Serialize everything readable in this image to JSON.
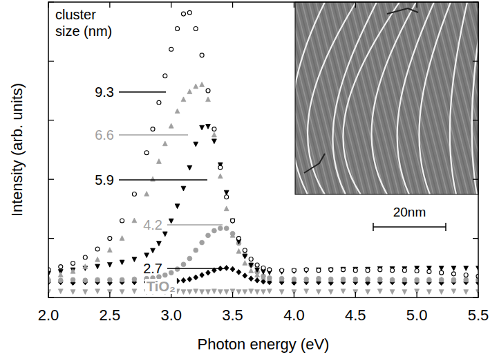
{
  "chart_data": {
    "type": "scatter",
    "xlabel": "Photon energy (eV)",
    "ylabel": "Intensity (arb. units)",
    "legend_title": "cluster size (nm)",
    "xlim": [
      2,
      5.5
    ],
    "ylim": [
      0,
      5
    ],
    "xticks": [
      {
        "value": 2,
        "label": "2.0"
      },
      2.5,
      {
        "value": 3,
        "label": "3.0"
      },
      3.5,
      {
        "value": 4,
        "label": "4.0"
      },
      4.5,
      {
        "value": 5,
        "label": "5.0"
      },
      5.5
    ],
    "yticks": [
      0,
      1,
      2,
      3,
      4,
      5
    ],
    "tick_labels": "x",
    "x": [
      2.0,
      2.1,
      2.2,
      2.3,
      2.4,
      2.5,
      2.6,
      2.7,
      2.8,
      2.85,
      2.9,
      2.95,
      3.0,
      3.05,
      3.1,
      3.15,
      3.2,
      3.25,
      3.3,
      3.35,
      3.4,
      3.45,
      3.5,
      3.55,
      3.6,
      3.65,
      3.7,
      3.75,
      3.8,
      3.9,
      4.0,
      4.1,
      4.2,
      4.3,
      4.4,
      4.5,
      4.6,
      4.7,
      4.8,
      4.9,
      5.0,
      5.1,
      5.2,
      5.3,
      5.4,
      5.5
    ],
    "series": [
      {
        "name": "9.3",
        "color": "#000000",
        "marker": "open-circle",
        "values": [
          0.47,
          0.52,
          0.58,
          0.68,
          0.82,
          1.0,
          1.3,
          1.75,
          2.45,
          2.85,
          3.3,
          3.75,
          4.2,
          4.55,
          4.8,
          4.82,
          4.55,
          4.1,
          3.5,
          2.85,
          2.2,
          1.7,
          1.3,
          1.0,
          0.8,
          0.65,
          0.55,
          0.5,
          0.47,
          0.46,
          0.46,
          0.47,
          0.46,
          0.47,
          0.47,
          0.46,
          0.46,
          0.47,
          0.46,
          0.46,
          0.45,
          0.44,
          0.42,
          0.4,
          0.38,
          0.36
        ]
      },
      {
        "name": "6.6",
        "color": "#a0a0a0",
        "marker": "triangle",
        "values": [
          0.33,
          0.38,
          0.44,
          0.52,
          0.64,
          0.8,
          1.0,
          1.3,
          1.75,
          2.0,
          2.3,
          2.6,
          2.9,
          3.15,
          3.35,
          3.48,
          3.57,
          3.6,
          3.35,
          2.75,
          2.05,
          1.5,
          1.05,
          0.78,
          0.58,
          0.45,
          0.38,
          0.34,
          0.32,
          0.31,
          0.31,
          0.3,
          0.31,
          0.3,
          0.3,
          0.3,
          0.31,
          0.3,
          0.3,
          0.3,
          0.29,
          0.3,
          0.3,
          0.29,
          0.3,
          0.3
        ]
      },
      {
        "name": "5.9",
        "color": "#000000",
        "marker": "triangle-down",
        "values": [
          0.41,
          0.44,
          0.47,
          0.5,
          0.53,
          0.56,
          0.6,
          0.65,
          0.72,
          0.8,
          0.92,
          1.08,
          1.3,
          1.55,
          1.85,
          2.2,
          2.6,
          2.88,
          2.9,
          2.65,
          2.25,
          1.78,
          1.3,
          0.95,
          0.7,
          0.55,
          0.47,
          0.44,
          0.43,
          0.44,
          0.45,
          0.46,
          0.47,
          0.47,
          0.48,
          0.48,
          0.48,
          0.49,
          0.49,
          0.49,
          0.5,
          0.5,
          0.5,
          0.5,
          0.5,
          0.5
        ]
      },
      {
        "name": "4.2",
        "color": "#a0a0a0",
        "marker": "circle",
        "values": [
          0.29,
          0.29,
          0.3,
          0.29,
          0.3,
          0.3,
          0.3,
          0.31,
          0.32,
          0.33,
          0.35,
          0.38,
          0.42,
          0.48,
          0.56,
          0.66,
          0.8,
          0.93,
          1.05,
          1.13,
          1.17,
          1.17,
          1.08,
          0.92,
          0.72,
          0.55,
          0.43,
          0.36,
          0.33,
          0.32,
          0.31,
          0.31,
          0.32,
          0.31,
          0.31,
          0.31,
          0.31,
          0.31,
          0.3,
          0.3,
          0.3,
          0.3,
          0.3,
          0.3,
          0.3,
          0.3
        ]
      },
      {
        "name": "2.7",
        "color": "#000000",
        "marker": "diamond",
        "values": [
          0.26,
          0.26,
          0.25,
          0.26,
          0.26,
          0.25,
          0.26,
          0.26,
          0.26,
          0.26,
          0.26,
          0.27,
          0.27,
          0.28,
          0.29,
          0.31,
          0.34,
          0.38,
          0.42,
          0.46,
          0.49,
          0.5,
          0.48,
          0.43,
          0.37,
          0.32,
          0.29,
          0.27,
          0.26,
          0.26,
          0.25,
          0.26,
          0.26,
          0.25,
          0.26,
          0.26,
          0.25,
          0.26,
          0.26,
          0.25,
          0.26,
          0.26,
          0.25,
          0.26,
          0.26,
          0.25
        ]
      },
      {
        "name": "TiO₂",
        "color": "#a0a0a0",
        "marker": "triangle-down",
        "values": [
          0.1,
          0.11,
          0.1,
          0.1,
          0.11,
          0.1,
          0.1,
          0.11,
          0.1,
          0.1,
          0.11,
          0.1,
          0.1,
          0.11,
          0.1,
          0.1,
          0.11,
          0.1,
          0.1,
          0.11,
          0.1,
          0.1,
          0.11,
          0.1,
          0.1,
          0.11,
          0.1,
          0.1,
          0.11,
          0.1,
          0.1,
          0.11,
          0.1,
          0.1,
          0.11,
          0.1,
          0.1,
          0.11,
          0.1,
          0.1,
          0.11,
          0.1,
          0.1,
          0.11,
          0.1,
          0.1
        ]
      }
    ]
  },
  "inset": {
    "scale_bar_label": "20nm"
  }
}
